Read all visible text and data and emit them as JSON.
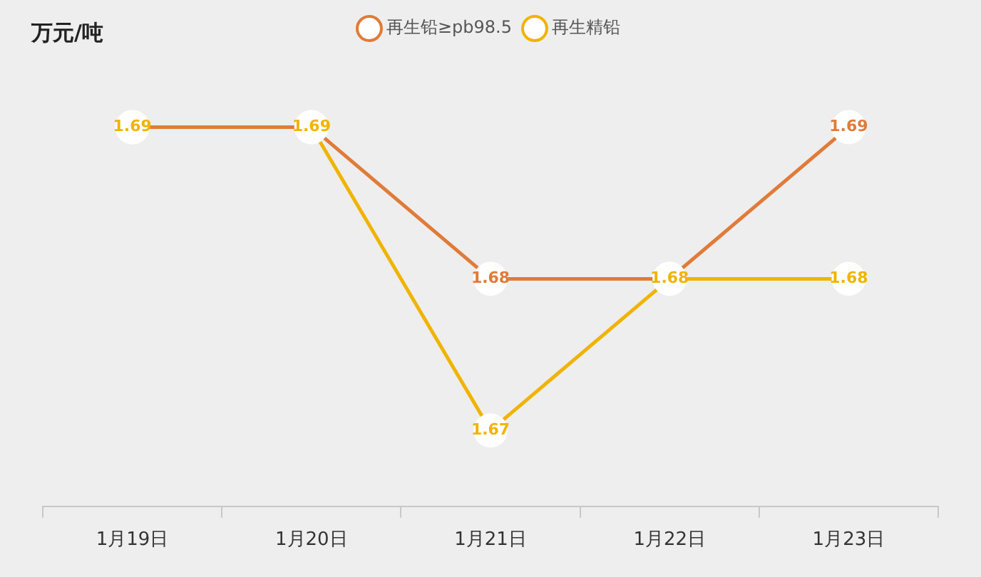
{
  "chart_data": {
    "type": "line",
    "title": "万元/吨",
    "categories": [
      "1月19日",
      "1月20日",
      "1月21日",
      "1月22日",
      "1月23日"
    ],
    "series": [
      {
        "name": "再生铅≥pb98.5",
        "color": "#e07b39",
        "values": [
          1.69,
          1.69,
          1.68,
          1.68,
          1.69
        ],
        "value_labels": [
          null,
          null,
          "1.68",
          null,
          "1.69"
        ]
      },
      {
        "name": "再生精铅",
        "color": "#f0b400",
        "values": [
          1.69,
          1.69,
          1.67,
          1.68,
          1.68
        ],
        "value_labels": [
          "1.69",
          "1.69",
          "1.67",
          "1.68",
          "1.68"
        ]
      }
    ],
    "tick_labels": "x",
    "grid": false,
    "legend": "top",
    "marker": "circle",
    "line_style": "solid"
  }
}
